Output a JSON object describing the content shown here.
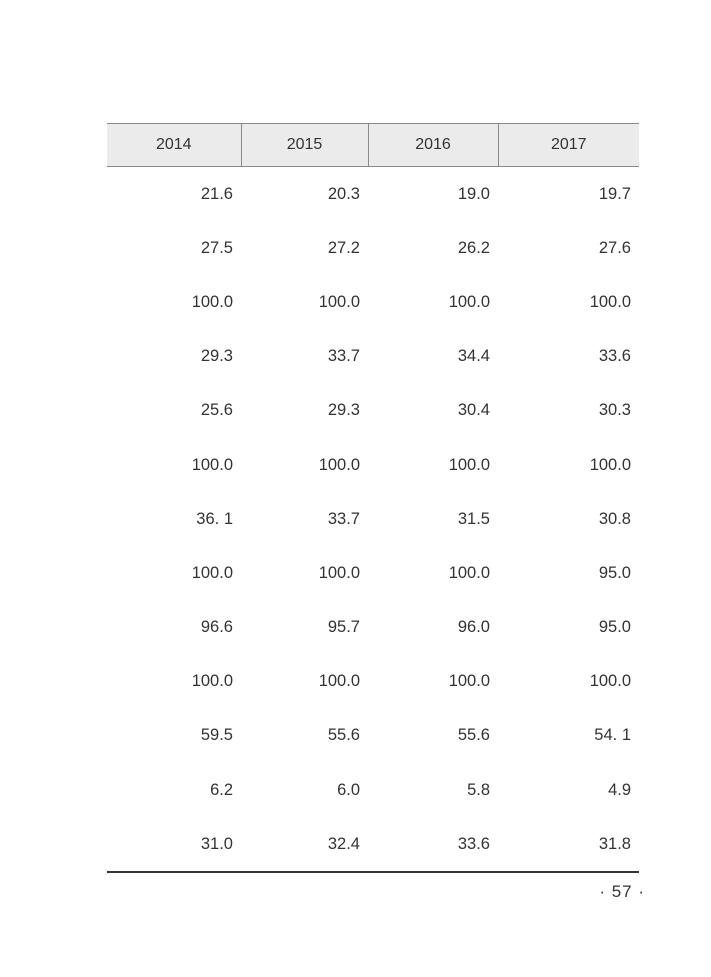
{
  "table": {
    "headers": [
      "2014",
      "2015",
      "2016",
      "2017"
    ],
    "rows": [
      [
        "21.6",
        "20.3",
        "19.0",
        "19.7"
      ],
      [
        "27.5",
        "27.2",
        "26.2",
        "27.6"
      ],
      [
        "100.0",
        "100.0",
        "100.0",
        "100.0"
      ],
      [
        "29.3",
        "33.7",
        "34.4",
        "33.6"
      ],
      [
        "25.6",
        "29.3",
        "30.4",
        "30.3"
      ],
      [
        "100.0",
        "100.0",
        "100.0",
        "100.0"
      ],
      [
        "36. 1",
        "33.7",
        "31.5",
        "30.8"
      ],
      [
        "100.0",
        "100.0",
        "100.0",
        "95.0"
      ],
      [
        "96.6",
        "95.7",
        "96.0",
        "95.0"
      ],
      [
        "100.0",
        "100.0",
        "100.0",
        "100.0"
      ],
      [
        "59.5",
        "55.6",
        "55.6",
        "54. 1"
      ],
      [
        "6.2",
        "6.0",
        "5.8",
        "4.9"
      ],
      [
        "31.0",
        "32.4",
        "33.6",
        "31.8"
      ]
    ]
  },
  "footer": {
    "page_number": "· 57 ·"
  }
}
